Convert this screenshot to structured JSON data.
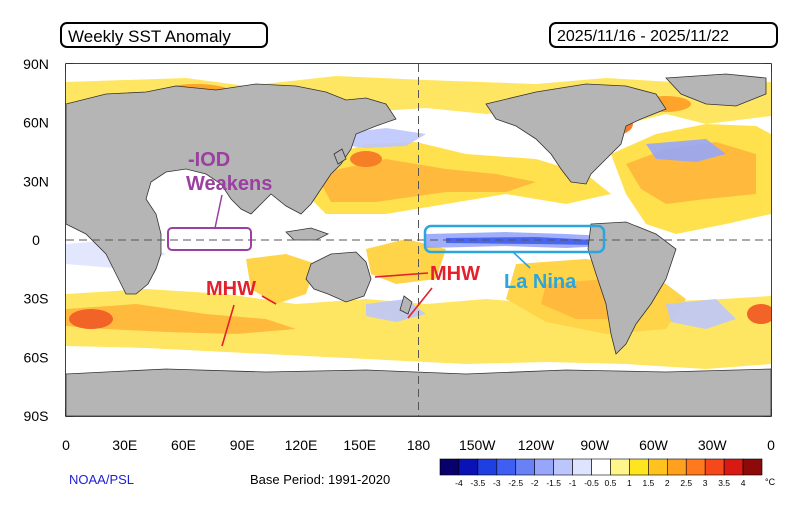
{
  "title": "Weekly SST Anomaly",
  "date_range": "2025/11/16 - 2025/11/22",
  "y_axis_labels": [
    "90N",
    "60N",
    "30N",
    "0",
    "30S",
    "60S",
    "90S"
  ],
  "x_axis_labels": [
    "0",
    "30E",
    "60E",
    "90E",
    "120E",
    "150E",
    "180",
    "150W",
    "120W",
    "90W",
    "60W",
    "30W",
    "0"
  ],
  "annotations": {
    "iod_line1": "-IOD",
    "iod_line2": "Weakens",
    "mhw_indian": "MHW",
    "mhw_pacific": "MHW",
    "la_nina": "La Nina"
  },
  "annotation_colors": {
    "iod": "#9b3fa1",
    "mhw": "#e3202b",
    "la_nina": "#2aa6dd"
  },
  "credit": "NOAA/PSL",
  "base_period": "Base Period: 1991-2020",
  "colorbar": {
    "unit": "°C",
    "labels": [
      "-4",
      "-3.5",
      "-3",
      "-2.5",
      "-2",
      "-1.5",
      "-1",
      "-0.5",
      "0.5",
      "1",
      "1.5",
      "2",
      "2.5",
      "3",
      "3.5",
      "4"
    ],
    "colors": [
      "#08006b",
      "#0a12b5",
      "#1f3fe0",
      "#3f5ef2",
      "#6a80f7",
      "#97a6fa",
      "#bcc6fc",
      "#dfe4fe",
      "#ffffff",
      "#fff58a",
      "#ffe51f",
      "#ffc21f",
      "#ffa01f",
      "#ff7a1f",
      "#f5491c",
      "#d91a14",
      "#8c0a0a"
    ]
  }
}
